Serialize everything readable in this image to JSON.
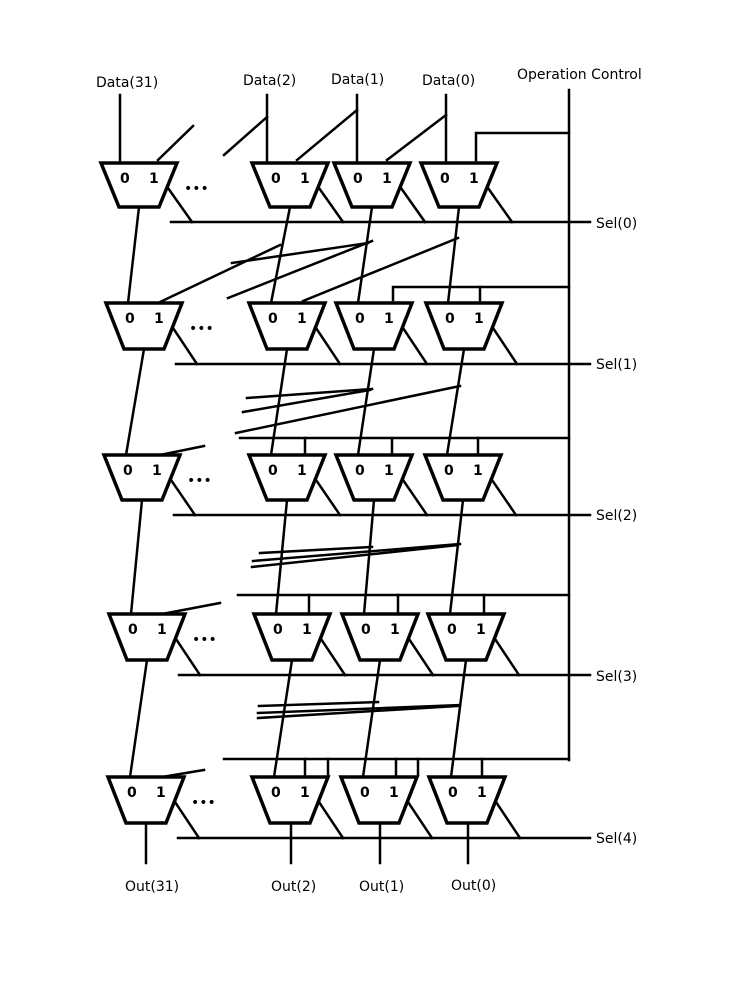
{
  "inputs": [
    "Data(31)",
    "Data(2)",
    "Data(1)",
    "Data(0)"
  ],
  "control_label": "Operation Control",
  "selects": [
    "Sel(0)",
    "Sel(1)",
    "Sel(2)",
    "Sel(3)",
    "Sel(4)"
  ],
  "outputs": [
    "Out(31)",
    "Out(2)",
    "Out(1)",
    "Out(0)"
  ],
  "mux_inputs": [
    "0",
    "1"
  ],
  "ellipsis": "•••"
}
